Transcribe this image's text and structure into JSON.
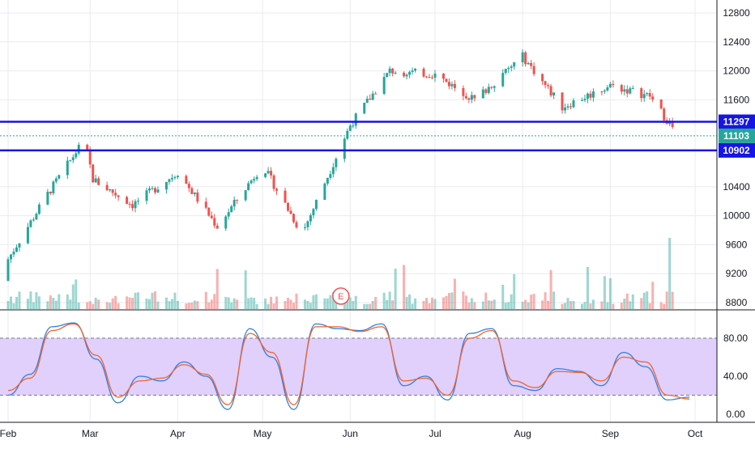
{
  "chart_data": [
    {
      "type": "candlestick",
      "x_labels": [
        "Feb",
        "Mar",
        "Apr",
        "May",
        "Jun",
        "Jul",
        "Aug",
        "Sep",
        "Oct"
      ],
      "y_ticks": [
        12800,
        12400,
        12000,
        11600,
        10400,
        10000,
        9600,
        9200,
        8800
      ],
      "ylim": [
        8750,
        12900
      ],
      "grid": true,
      "horizontal_levels": [
        {
          "label": "11297",
          "value": 11297,
          "color": "#1515e6"
        },
        {
          "label": "10902",
          "value": 10902,
          "color": "#1515e6"
        },
        {
          "label": "11103",
          "value": 11103,
          "color": "#26a69a"
        }
      ],
      "event_marker": {
        "label": "E",
        "date": "May 27"
      },
      "candles_monthly_approx": [
        {
          "date": "Feb 1",
          "o": 9100,
          "h": 9450,
          "l": 9050,
          "c": 9400
        },
        {
          "date": "Feb 15",
          "o": 10000,
          "h": 10350,
          "l": 9950,
          "c": 10300
        },
        {
          "date": "Feb 28",
          "o": 10800,
          "h": 11100,
          "l": 10750,
          "c": 11050
        },
        {
          "date": "Mar 2",
          "o": 10950,
          "h": 11000,
          "l": 10450,
          "c": 10500
        },
        {
          "date": "Mar 16",
          "o": 10350,
          "h": 10550,
          "l": 10100,
          "c": 10150
        },
        {
          "date": "Apr 1",
          "o": 10500,
          "h": 10700,
          "l": 10450,
          "c": 10600
        },
        {
          "date": "Apr 15",
          "o": 10000,
          "h": 10200,
          "l": 9800,
          "c": 9850
        },
        {
          "date": "May 1",
          "o": 10650,
          "h": 10800,
          "l": 10550,
          "c": 10700
        },
        {
          "date": "May 15",
          "o": 9900,
          "h": 10050,
          "l": 9700,
          "c": 9750
        },
        {
          "date": "Jun 1",
          "o": 10800,
          "h": 11300,
          "l": 10750,
          "c": 11250
        },
        {
          "date": "Jun 15",
          "o": 11950,
          "h": 12050,
          "l": 11800,
          "c": 12000
        },
        {
          "date": "Jul 1",
          "o": 12050,
          "h": 12100,
          "l": 11900,
          "c": 11950
        },
        {
          "date": "Jul 15",
          "o": 11800,
          "h": 11900,
          "l": 11550,
          "c": 11600
        },
        {
          "date": "Aug 1",
          "o": 12400,
          "h": 12550,
          "l": 12100,
          "c": 12200
        },
        {
          "date": "Aug 15",
          "o": 11800,
          "h": 11900,
          "l": 11450,
          "c": 11500
        },
        {
          "date": "Sep 1",
          "o": 11850,
          "h": 11950,
          "l": 11700,
          "c": 11800
        },
        {
          "date": "Sep 15",
          "o": 12000,
          "h": 12150,
          "l": 11650,
          "c": 11650
        },
        {
          "date": "Sep 25",
          "o": 10900,
          "h": 11200,
          "l": 10750,
          "c": 11103
        }
      ],
      "volume": {
        "shown": true,
        "highest_bar_date": "Sep 23"
      }
    },
    {
      "type": "line",
      "indicator": "Stochastic",
      "y_ticks": [
        "80.00",
        "40.00",
        "0.00"
      ],
      "ylim": [
        -5,
        105
      ],
      "band": [
        20,
        80
      ],
      "series": [
        {
          "key": "k",
          "color": "#2f7fe0",
          "values": [
            20,
            42,
            92,
            96,
            58,
            12,
            40,
            35,
            55,
            40,
            5,
            90,
            60,
            5,
            95,
            90,
            88,
            95,
            30,
            40,
            15,
            85,
            90,
            30,
            25,
            48,
            45,
            30,
            65,
            50,
            15,
            18
          ]
        },
        {
          "key": "d",
          "color": "#f0642a",
          "values": [
            25,
            38,
            88,
            95,
            62,
            18,
            35,
            38,
            52,
            42,
            10,
            85,
            65,
            10,
            92,
            92,
            87,
            92,
            35,
            38,
            20,
            80,
            88,
            35,
            28,
            45,
            44,
            35,
            60,
            55,
            20,
            16
          ]
        }
      ]
    }
  ],
  "colors": {
    "up": "#26a69a",
    "down": "#ef5350",
    "level": "#1515e6",
    "band_fill": "#e1cffc",
    "grid": "#e9ebf0"
  }
}
